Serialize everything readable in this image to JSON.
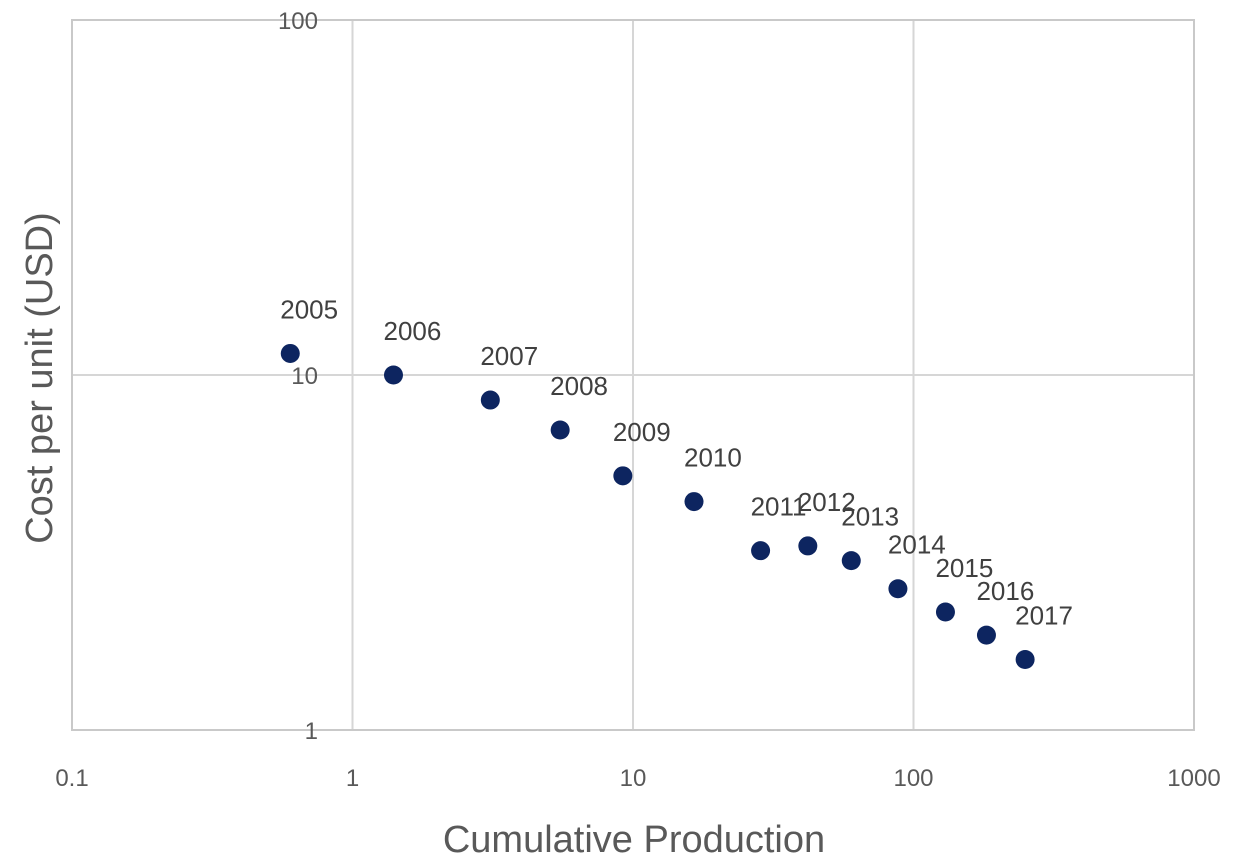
{
  "chart_data": {
    "type": "scatter",
    "title": "",
    "xlabel": "Cumulative Production",
    "ylabel": "Cost per unit (USD)",
    "xscale": "log",
    "yscale": "log",
    "xlim": [
      0.1,
      1000
    ],
    "ylim": [
      1,
      100
    ],
    "grid": true,
    "legend": "none",
    "x_ticks": [
      "0.1",
      "1",
      "10",
      "100",
      "1000"
    ],
    "y_ticks": [
      "1",
      "10",
      "100"
    ],
    "marker_color": "#0d2560",
    "points": [
      {
        "label": "2005",
        "x": 0.6,
        "y": 11.5
      },
      {
        "label": "2006",
        "x": 1.4,
        "y": 10.0
      },
      {
        "label": "2007",
        "x": 3.1,
        "y": 8.5
      },
      {
        "label": "2008",
        "x": 5.5,
        "y": 7.0
      },
      {
        "label": "2009",
        "x": 9.2,
        "y": 5.2
      },
      {
        "label": "2010",
        "x": 16.5,
        "y": 4.4
      },
      {
        "label": "2011",
        "x": 28.5,
        "y": 3.2
      },
      {
        "label": "2012",
        "x": 42,
        "y": 3.3
      },
      {
        "label": "2013",
        "x": 60,
        "y": 3.0
      },
      {
        "label": "2014",
        "x": 88,
        "y": 2.5
      },
      {
        "label": "2015",
        "x": 130,
        "y": 2.15
      },
      {
        "label": "2016",
        "x": 182,
        "y": 1.85
      },
      {
        "label": "2017",
        "x": 250,
        "y": 1.58
      }
    ]
  }
}
